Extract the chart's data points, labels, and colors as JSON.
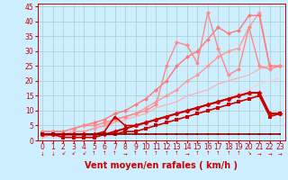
{
  "xlabel": "Vent moyen/en rafales ( km/h )",
  "bg_color": "#cceeff",
  "grid_color": "#aacccc",
  "xlim": [
    -0.5,
    23.5
  ],
  "ylim": [
    0,
    46
  ],
  "xticks": [
    0,
    1,
    2,
    3,
    4,
    5,
    6,
    7,
    8,
    9,
    10,
    11,
    12,
    13,
    14,
    15,
    16,
    17,
    18,
    19,
    20,
    21,
    22,
    23
  ],
  "yticks": [
    0,
    5,
    10,
    15,
    20,
    25,
    30,
    35,
    40,
    45
  ],
  "lines": [
    {
      "comment": "lightest pink - nearly straight diagonal, no marker (or tiny)",
      "x": [
        0,
        1,
        2,
        3,
        4,
        5,
        6,
        7,
        8,
        9,
        10,
        11,
        12,
        13,
        14,
        15,
        16,
        17,
        18,
        19,
        20,
        21,
        22,
        23
      ],
      "y": [
        1,
        1,
        1,
        2,
        2,
        2,
        3,
        3,
        4,
        5,
        6,
        7,
        8,
        9,
        10,
        11,
        12,
        13,
        14,
        16,
        17,
        19,
        20,
        21
      ],
      "color": "#ffcccc",
      "lw": 0.8,
      "marker": "None",
      "ms": 0,
      "alpha": 1.0
    },
    {
      "comment": "light pink - straight diagonal line",
      "x": [
        0,
        1,
        2,
        3,
        4,
        5,
        6,
        7,
        8,
        9,
        10,
        11,
        12,
        13,
        14,
        15,
        16,
        17,
        18,
        19,
        20,
        21,
        22,
        23
      ],
      "y": [
        1,
        2,
        2,
        3,
        3,
        4,
        5,
        6,
        7,
        8,
        9,
        11,
        12,
        13,
        15,
        16,
        17,
        19,
        20,
        21,
        22,
        24,
        25,
        25
      ],
      "color": "#ffaaaa",
      "lw": 0.8,
      "marker": "None",
      "ms": 0,
      "alpha": 1.0
    },
    {
      "comment": "medium pink with diamonds - goes up to ~43 at x=21",
      "x": [
        0,
        1,
        2,
        3,
        4,
        5,
        6,
        7,
        8,
        9,
        10,
        11,
        12,
        13,
        14,
        15,
        16,
        17,
        18,
        19,
        20,
        21,
        22,
        23
      ],
      "y": [
        2,
        2,
        2,
        3,
        3,
        4,
        5,
        7,
        8,
        9,
        11,
        13,
        15,
        17,
        20,
        22,
        25,
        28,
        30,
        31,
        38,
        43,
        25,
        25
      ],
      "color": "#ff9999",
      "lw": 1.0,
      "marker": "D",
      "ms": 2.5,
      "alpha": 1.0
    },
    {
      "comment": "medium pink with diamonds - peaks ~42 at x=20 then 37 at x=20",
      "x": [
        0,
        1,
        2,
        3,
        4,
        5,
        6,
        7,
        8,
        9,
        10,
        11,
        12,
        13,
        14,
        15,
        16,
        17,
        18,
        19,
        20,
        21,
        22,
        23
      ],
      "y": [
        3,
        3,
        3,
        4,
        5,
        6,
        7,
        9,
        10,
        12,
        14,
        17,
        20,
        25,
        28,
        30,
        34,
        38,
        36,
        37,
        42,
        42,
        25,
        25
      ],
      "color": "#ff7777",
      "lw": 1.0,
      "marker": "D",
      "ms": 2.5,
      "alpha": 1.0
    },
    {
      "comment": "medium pink spiky - peaks ~42 then dips and 37",
      "x": [
        0,
        1,
        2,
        3,
        4,
        5,
        6,
        7,
        8,
        9,
        10,
        11,
        12,
        13,
        14,
        15,
        16,
        17,
        18,
        19,
        20,
        21,
        22,
        23
      ],
      "y": [
        3,
        3,
        3,
        4,
        5,
        5,
        6,
        7,
        8,
        9,
        10,
        12,
        25,
        33,
        32,
        26,
        43,
        31,
        22,
        24,
        38,
        25,
        24,
        25
      ],
      "color": "#ff8888",
      "lw": 1.0,
      "marker": "D",
      "ms": 2.5,
      "alpha": 1.0
    },
    {
      "comment": "dark red - triangular shaped peak at x=7",
      "x": [
        0,
        1,
        2,
        3,
        4,
        5,
        6,
        7,
        8,
        9,
        10,
        11,
        12,
        13,
        14,
        15,
        16,
        17,
        18,
        19,
        20,
        21,
        22,
        23
      ],
      "y": [
        2,
        2,
        2,
        2,
        2,
        2,
        3,
        8,
        5,
        5,
        6,
        7,
        8,
        9,
        10,
        11,
        12,
        13,
        14,
        15,
        16,
        16,
        9,
        9
      ],
      "color": "#cc0000",
      "lw": 1.2,
      "marker": "^",
      "ms": 3.0,
      "alpha": 1.0
    },
    {
      "comment": "dark red main - rises to 16 at x=20 then drops to 9",
      "x": [
        0,
        1,
        2,
        3,
        4,
        5,
        6,
        7,
        8,
        9,
        10,
        11,
        12,
        13,
        14,
        15,
        16,
        17,
        18,
        19,
        20,
        21,
        22,
        23
      ],
      "y": [
        2,
        2,
        2,
        2,
        2,
        2,
        2,
        3,
        4,
        5,
        6,
        7,
        8,
        9,
        10,
        11,
        12,
        13,
        14,
        15,
        16,
        16,
        9,
        9
      ],
      "color": "#cc0000",
      "lw": 1.5,
      "marker": "D",
      "ms": 3.0,
      "alpha": 1.0
    },
    {
      "comment": "dark red - rises to 15 at x=21 then drops to 9",
      "x": [
        0,
        1,
        2,
        3,
        4,
        5,
        6,
        7,
        8,
        9,
        10,
        11,
        12,
        13,
        14,
        15,
        16,
        17,
        18,
        19,
        20,
        21,
        22,
        23
      ],
      "y": [
        2,
        2,
        1,
        1,
        1,
        1,
        2,
        2,
        3,
        3,
        4,
        5,
        6,
        7,
        8,
        9,
        10,
        11,
        12,
        13,
        14,
        15,
        8,
        9
      ],
      "color": "#cc0000",
      "lw": 1.2,
      "marker": "s",
      "ms": 2.5,
      "alpha": 1.0
    },
    {
      "comment": "darkest red bottom - nearly flat around 2-3",
      "x": [
        0,
        1,
        2,
        3,
        4,
        5,
        6,
        7,
        8,
        9,
        10,
        11,
        12,
        13,
        14,
        15,
        16,
        17,
        18,
        19,
        20,
        21,
        22,
        23
      ],
      "y": [
        2,
        2,
        2,
        2,
        2,
        2,
        2,
        2,
        2,
        2,
        2,
        2,
        2,
        2,
        2,
        2,
        2,
        2,
        2,
        2,
        2,
        2,
        2,
        2
      ],
      "color": "#880000",
      "lw": 1.2,
      "marker": "s",
      "ms": 2.0,
      "alpha": 1.0
    }
  ],
  "arrow_row": [
    "↓",
    "↓",
    "↙",
    "↙",
    "↙",
    "↑",
    "↑",
    "↑",
    "→",
    "↑",
    "↑",
    "↑",
    "↑",
    "↑",
    "→",
    "↑",
    "↑",
    "↑",
    "↑",
    "↑",
    "↘",
    "→",
    "→",
    "→"
  ],
  "text_color": "#cc0000",
  "label_fontsize": 7,
  "tick_fontsize": 5.5
}
